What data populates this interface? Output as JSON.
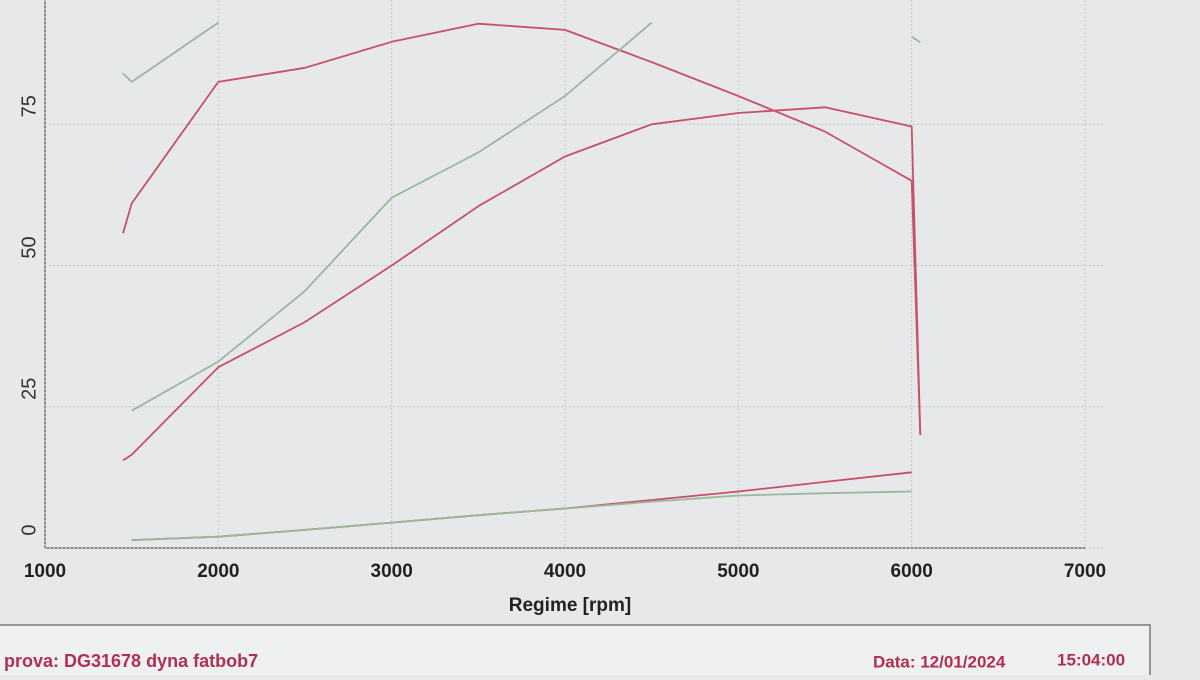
{
  "chart_data": {
    "type": "line",
    "x_label": "Regime [rpm]",
    "x": [
      1450,
      1500,
      2000,
      2500,
      3000,
      3500,
      4000,
      4500,
      5000,
      5500,
      6000,
      6050
    ],
    "series": [
      {
        "color": "#c8506a",
        "values": [
          55.7,
          61,
          82.5,
          85,
          89.6,
          92.8,
          91.7,
          86,
          80,
          73.7,
          65,
          20
        ]
      },
      {
        "color": "#c8506a",
        "values": [
          15.5,
          16.5,
          32,
          40,
          50,
          60.5,
          69.3,
          75,
          77,
          78,
          74.6,
          20
        ]
      },
      {
        "color": "#9ab89a",
        "values": [
          84,
          82.5,
          93,
          null,
          null,
          null,
          null,
          null,
          null,
          null,
          90.5,
          89.5
        ]
      },
      {
        "color": "#9ab89a",
        "values": [
          null,
          24.3,
          33,
          45.5,
          62,
          70,
          80,
          93,
          null,
          null,
          null,
          null
        ]
      },
      {
        "color": "#c8506a",
        "values": [
          null,
          1.4,
          2,
          3.2,
          4.5,
          5.8,
          7,
          8.5,
          10,
          11.7,
          13.4,
          null
        ]
      },
      {
        "color": "#9ab89a",
        "values": [
          null,
          1.4,
          2,
          3.2,
          4.5,
          5.8,
          7,
          8.2,
          9.3,
          9.7,
          10,
          null
        ]
      }
    ],
    "xlim": [
      1000,
      7000
    ],
    "xticks": [
      1000,
      2000,
      3000,
      4000,
      5000,
      6000,
      7000
    ],
    "ylim": [
      0,
      97
    ],
    "yticks": [
      0,
      25,
      50,
      75
    ],
    "grid": true,
    "footer": {
      "test": "prova: DG31678 dyna fatbob7",
      "date": "Data: 12/01/2024",
      "time": "15:04:00"
    }
  }
}
